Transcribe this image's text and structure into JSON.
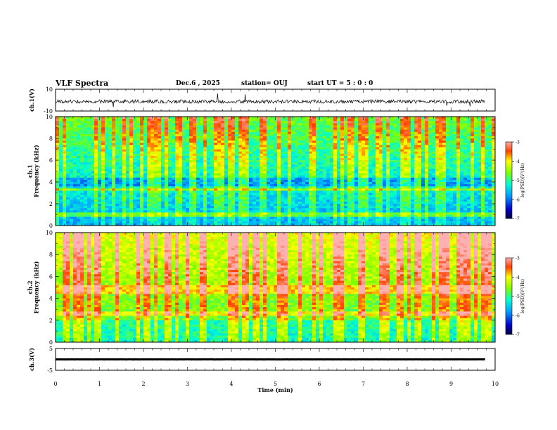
{
  "header": {
    "title": "VLF Spectra",
    "date": "Dec.6 , 2025",
    "station": "station= OUJ",
    "start": "start UT =  5 : 0 : 0"
  },
  "chart_data": [
    {
      "type": "line",
      "panel": "ch1-waveform",
      "ylabel": "ch.1(V)",
      "yticks": [
        "10",
        "-10"
      ],
      "ylim": [
        -10,
        10
      ],
      "xlim": [
        0,
        10
      ]
    },
    {
      "type": "heatmap",
      "panel": "ch1-spectrogram",
      "ylabel": "ch.1\nFrequency (kHz)",
      "yticks": [
        "0",
        "2",
        "4",
        "6",
        "8",
        "10"
      ],
      "ylim": [
        0,
        10
      ],
      "xlim": [
        0,
        10
      ],
      "colorbar": {
        "label": "log(PSD)(V²/Hz)",
        "ticks": [
          "-3",
          "-4",
          "-5",
          "-6",
          "-7"
        ],
        "range": [
          -7,
          -3
        ]
      }
    },
    {
      "type": "heatmap",
      "panel": "ch2-spectrogram",
      "ylabel": "ch.2\nFrequency (kHz)",
      "yticks": [
        "0",
        "2",
        "4",
        "6",
        "8",
        "10"
      ],
      "ylim": [
        0,
        10
      ],
      "xlim": [
        0,
        10
      ],
      "colorbar": {
        "label": "log(PSD)(V²/Hz)",
        "ticks": [
          "-3",
          "-4",
          "-5",
          "-6",
          "-7"
        ],
        "range": [
          -7,
          -3
        ]
      }
    },
    {
      "type": "line",
      "panel": "ch3-waveform",
      "ylabel": "ch.3(V)",
      "yticks": [
        "5",
        "-5"
      ],
      "ylim": [
        -5,
        5
      ],
      "xlim": [
        0,
        10
      ]
    }
  ],
  "xaxis": {
    "label": "Time (min)",
    "ticks": [
      "0",
      "1",
      "2",
      "3",
      "4",
      "5",
      "6",
      "7",
      "8",
      "9",
      "10"
    ]
  }
}
